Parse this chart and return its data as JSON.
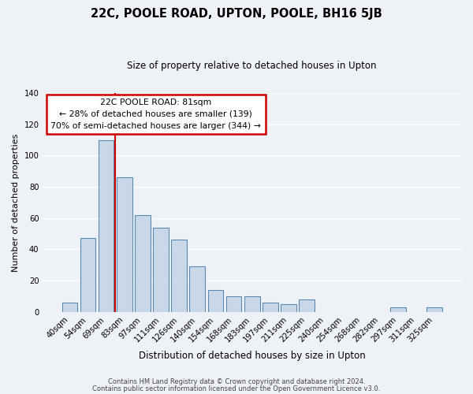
{
  "title": "22C, POOLE ROAD, UPTON, POOLE, BH16 5JB",
  "subtitle": "Size of property relative to detached houses in Upton",
  "xlabel": "Distribution of detached houses by size in Upton",
  "ylabel": "Number of detached properties",
  "bar_labels": [
    "40sqm",
    "54sqm",
    "69sqm",
    "83sqm",
    "97sqm",
    "111sqm",
    "126sqm",
    "140sqm",
    "154sqm",
    "168sqm",
    "183sqm",
    "197sqm",
    "211sqm",
    "225sqm",
    "240sqm",
    "254sqm",
    "268sqm",
    "282sqm",
    "297sqm",
    "311sqm",
    "325sqm"
  ],
  "bar_values": [
    6,
    47,
    110,
    86,
    62,
    54,
    46,
    29,
    14,
    10,
    10,
    6,
    5,
    8,
    0,
    0,
    0,
    0,
    3,
    0,
    3
  ],
  "bar_color": "#c8d8e8",
  "bar_edge_color": "#5a8ab0",
  "vline_after_index": 2,
  "vline_color": "#cc0000",
  "ylim": [
    0,
    140
  ],
  "yticks": [
    0,
    20,
    40,
    60,
    80,
    100,
    120,
    140
  ],
  "annotation_title": "22C POOLE ROAD: 81sqm",
  "annotation_line1": "← 28% of detached houses are smaller (139)",
  "annotation_line2": "70% of semi-detached houses are larger (344) →",
  "footer1": "Contains HM Land Registry data © Crown copyright and database right 2024.",
  "footer2": "Contains public sector information licensed under the Open Government Licence v3.0.",
  "background_color": "#eef2f7",
  "grid_color": "#ffffff"
}
